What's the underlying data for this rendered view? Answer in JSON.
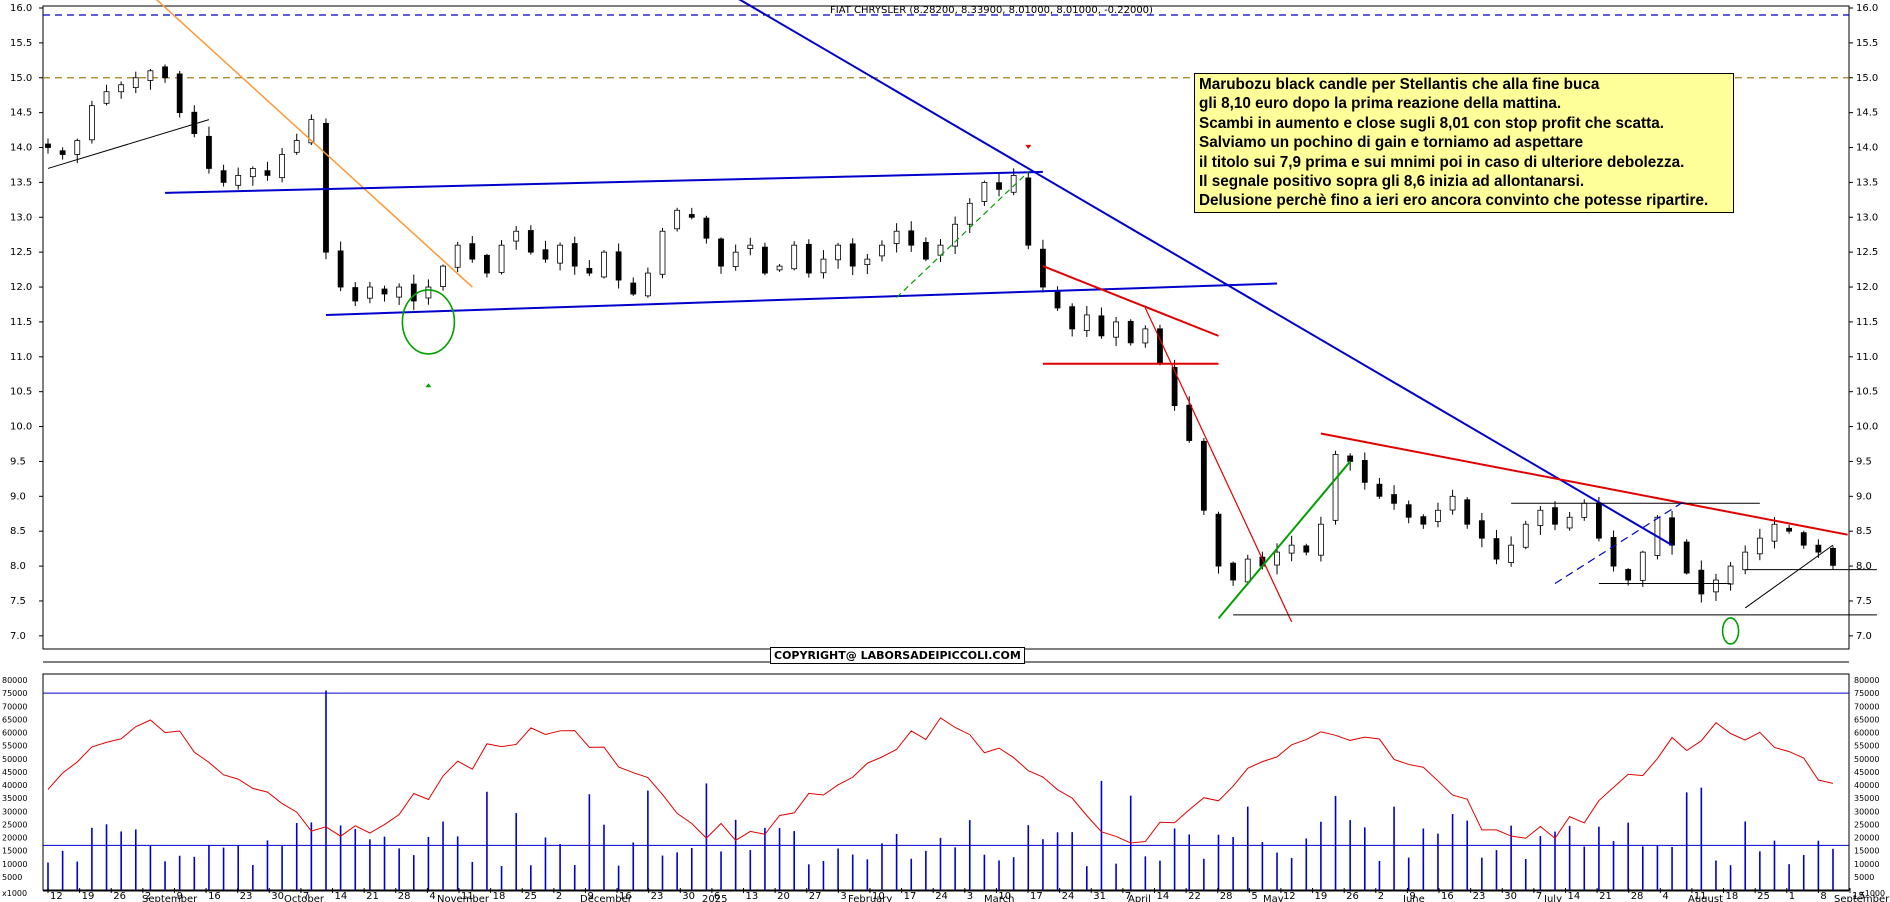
{
  "chart_data": [
    {
      "type": "candlestick",
      "title": "FIAT CHRYSLER (8.28200, 8.33900, 8.01000, 8.01000, -0.22000)",
      "ylim": [
        6.9,
        16.0
      ],
      "yticks": [
        "7.0",
        "7.5",
        "8.0",
        "8.5",
        "9.0",
        "9.5",
        "10.0",
        "10.5",
        "11.0",
        "11.5",
        "12.0",
        "12.5",
        "13.0",
        "13.5",
        "14.0",
        "14.5",
        "15.0",
        "15.5",
        "16.0"
      ],
      "x_ticks": [
        "12",
        "19",
        "26",
        "2",
        "9",
        "16",
        "23",
        "30",
        "7",
        "14",
        "21",
        "28",
        "4",
        "11",
        "18",
        "25",
        "2",
        "9",
        "16",
        "23",
        "30",
        "6",
        "13",
        "20",
        "27",
        "3",
        "10",
        "17",
        "24",
        "3",
        "10",
        "17",
        "24",
        "31",
        "7",
        "14",
        "22",
        "28",
        "5",
        "12",
        "19",
        "26",
        "2",
        "9",
        "16",
        "23",
        "30",
        "7",
        "14",
        "21",
        "28",
        "4",
        "11",
        "18",
        "25",
        "1",
        "8",
        "15"
      ],
      "months": [
        "September",
        "October",
        "November",
        "December",
        "2025",
        "February",
        "March",
        "April",
        "May",
        "June",
        "July",
        "August",
        "September"
      ],
      "horizontal_levels": [
        {
          "value": 15.9,
          "style": "dashed",
          "color": "#0000cc"
        },
        {
          "value": 15.0,
          "style": "dashed",
          "color": "#a08020"
        }
      ],
      "closing_series": [
        14.0,
        13.9,
        14.1,
        14.6,
        14.8,
        14.9,
        15.0,
        15.1,
        15.0,
        14.5,
        14.2,
        13.7,
        13.5,
        13.6,
        13.7,
        13.6,
        13.9,
        14.1,
        14.4,
        12.5,
        12.0,
        11.8,
        12.0,
        11.9,
        12.0,
        11.8,
        12.0,
        12.3,
        12.6,
        12.4,
        12.2,
        12.6,
        12.8,
        12.5,
        12.4,
        12.6,
        12.3,
        12.2,
        12.5,
        12.1,
        11.9,
        12.2,
        12.8,
        13.1,
        13.0,
        12.7,
        12.3,
        12.5,
        12.6,
        12.2,
        12.3,
        12.6,
        12.2,
        12.4,
        12.6,
        12.3,
        12.4,
        12.6,
        12.8,
        12.6,
        12.4,
        12.6,
        12.9,
        13.2,
        13.5,
        13.4,
        13.6,
        12.6,
        12.0,
        11.7,
        11.4,
        11.6,
        11.3,
        11.5,
        11.2,
        11.4,
        10.9,
        10.3,
        9.8,
        8.8,
        8.0,
        7.8,
        8.1,
        8.0,
        8.2,
        8.3,
        8.2,
        8.6,
        9.6,
        9.5,
        9.2,
        9.0,
        8.9,
        8.7,
        8.6,
        8.8,
        9.0,
        8.6,
        8.4,
        8.1,
        8.3,
        8.6,
        8.8,
        8.6,
        8.7,
        8.9,
        8.4,
        8.0,
        7.8,
        8.2,
        8.7,
        8.3,
        7.9,
        7.6,
        7.8,
        8.0,
        8.2,
        8.4,
        8.6,
        8.5,
        8.3,
        8.2,
        8.01
      ],
      "annotations": [
        "Marubozu black candle per Stellantis che alla fine buca",
        "gli 8,10 euro dopo la prima reazione della mattina."
      ]
    },
    {
      "type": "bar+line",
      "name": "volume",
      "ylim": [
        0,
        80000
      ],
      "yticks": [
        "5000",
        "10000",
        "15000",
        "20000",
        "25000",
        "30000",
        "35000",
        "40000",
        "45000",
        "50000",
        "55000",
        "60000",
        "65000",
        "70000",
        "75000",
        "80000"
      ],
      "horizontal_levels": [
        75000,
        17000
      ],
      "axis_unit": "x1000"
    }
  ],
  "comment": {
    "lines": [
      "Marubozu black candle per Stellantis che alla fine buca",
      "gli 8,10 euro dopo la prima reazione della mattina.",
      "Scambi in aumento e close sugli 8,01 con stop profit che scatta.",
      "Salviamo un pochino di gain e torniamo ad aspettare",
      "il titolo sui 7,9 prima e sui mnimi poi in caso di ulteriore debolezza.",
      "Il segnale positivo sopra gli 8,6 inizia ad allontanarsi.",
      "Delusione perchè fino a ieri ero ancora convinto che potesse ripartire."
    ]
  },
  "copyright": "COPYRIGHT@ LABORSADEIPICCOLI.COM",
  "colors": {
    "trendline_blue": "#0000cc",
    "trendline_red": "#e00000",
    "trendline_green": "#00a000",
    "trendline_orange": "#ff9933",
    "volume_bars": "#0000cc",
    "volume_avg": "#e00000",
    "comment_bg": "#ffff99"
  }
}
